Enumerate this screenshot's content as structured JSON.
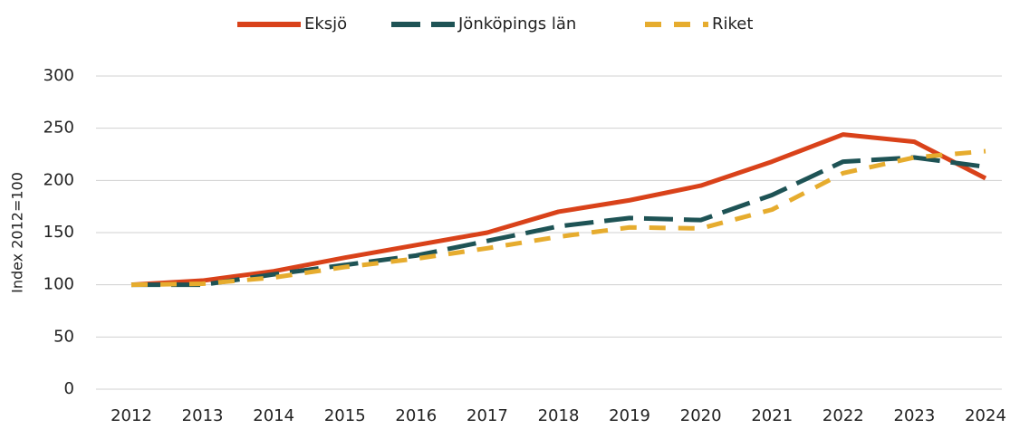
{
  "chart_data": {
    "type": "line",
    "categories": [
      "2012",
      "2013",
      "2014",
      "2015",
      "2016",
      "2017",
      "2018",
      "2019",
      "2020",
      "2021",
      "2022",
      "2023",
      "2024"
    ],
    "series": [
      {
        "name": "Eksjö",
        "color": "#d9421a",
        "dash": "solid",
        "values": [
          100,
          104,
          113,
          126,
          138,
          150,
          170,
          181,
          195,
          218,
          244,
          237,
          202
        ]
      },
      {
        "name": "Jönköpings län",
        "color": "#1e5355",
        "dash": "long",
        "values": [
          100,
          100,
          110,
          119,
          128,
          142,
          156,
          164,
          162,
          186,
          218,
          222,
          213
        ]
      },
      {
        "name": "Riket",
        "color": "#e6ac2e",
        "dash": "short",
        "values": [
          100,
          101,
          107,
          117,
          125,
          135,
          146,
          155,
          154,
          172,
          207,
          222,
          228
        ]
      }
    ],
    "y_label": "Index 2012=100",
    "ylim": [
      0,
      300
    ],
    "yticks": [
      0,
      50,
      100,
      150,
      200,
      250,
      300
    ],
    "grid": true,
    "legend": "top"
  }
}
